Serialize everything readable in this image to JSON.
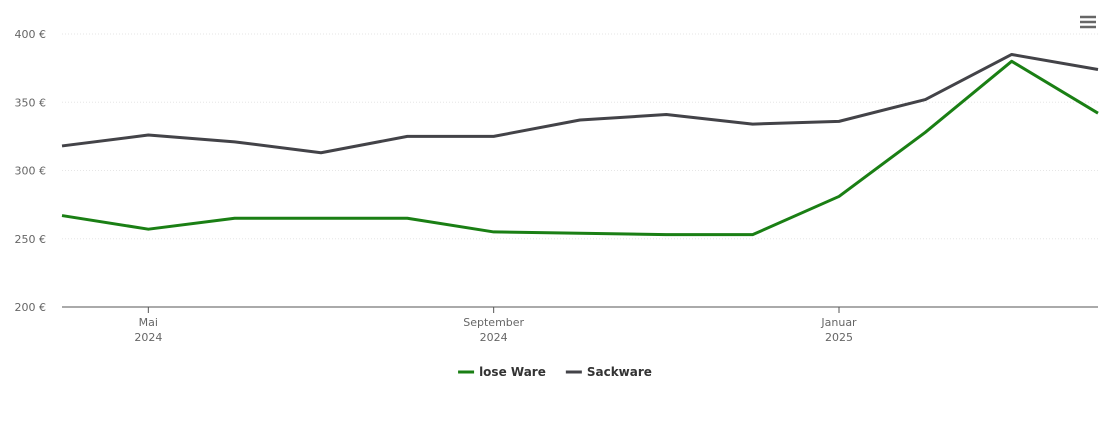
{
  "chart_data": {
    "type": "line",
    "x": [
      "2024-04",
      "2024-05",
      "2024-06",
      "2024-07",
      "2024-08",
      "2024-09",
      "2024-10",
      "2024-11",
      "2024-12",
      "2025-01",
      "2025-02",
      "2025-03",
      "2025-04"
    ],
    "series": [
      {
        "name": "lose Ware",
        "color": "#1a7f14",
        "values": [
          267,
          257,
          265,
          265,
          265,
          255,
          254,
          253,
          253,
          281,
          328,
          380,
          342
        ]
      },
      {
        "name": "Sackware",
        "color": "#434348",
        "values": [
          318,
          326,
          321,
          313,
          325,
          325,
          337,
          341,
          334,
          336,
          352,
          385,
          374
        ]
      }
    ],
    "xlim": [
      "2024-04",
      "2025-04"
    ],
    "xticks": [
      {
        "value": "2024-05",
        "label": "Mai 2024"
      },
      {
        "value": "2024-09",
        "label": "September 2024"
      },
      {
        "value": "2025-01",
        "label": "Januar 2025"
      }
    ],
    "ylim": [
      200,
      400
    ],
    "yticks": [
      {
        "value": 200,
        "label": "200 €"
      },
      {
        "value": 250,
        "label": "250 €"
      },
      {
        "value": 300,
        "label": "300 €"
      },
      {
        "value": 350,
        "label": "350 €"
      },
      {
        "value": 400,
        "label": "400 €"
      }
    ],
    "grid": true,
    "legend": "bottom"
  }
}
